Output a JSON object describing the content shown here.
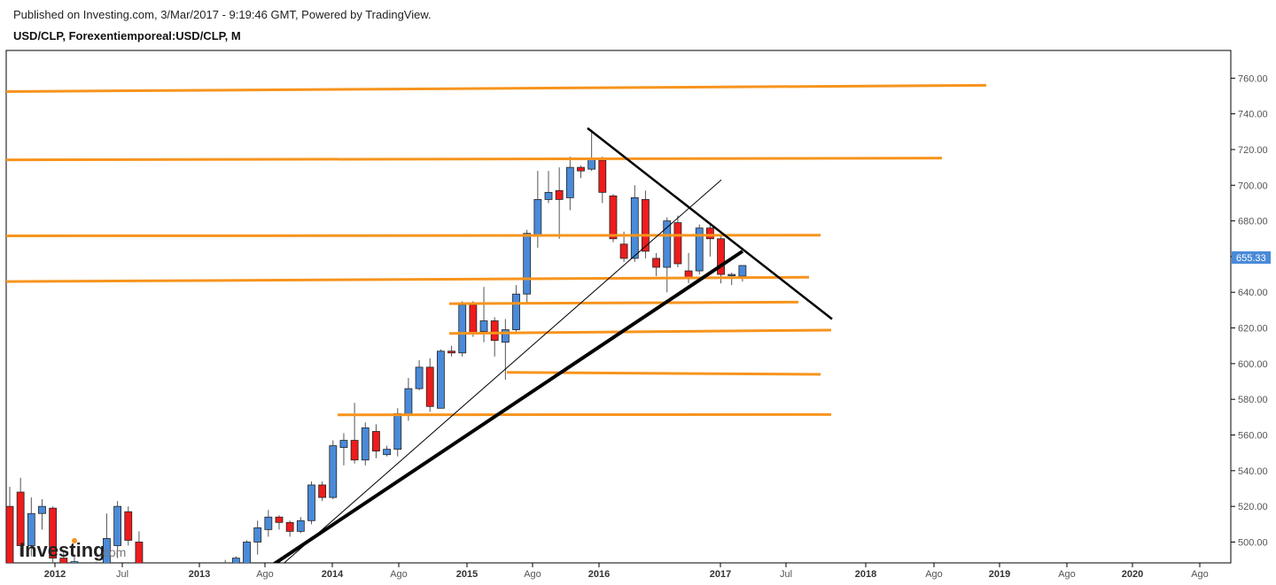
{
  "header": {
    "published": "Published on Investing.com, 3/Mar/2017 - 9:19:46 GMT, Powered by TradingView.",
    "symbol": "USD/CLP, Forexentiemporeal:USD/CLP, M"
  },
  "logo": {
    "text": "Investing",
    "suffix": ".com"
  },
  "chart_data": {
    "type": "candlestick",
    "y_axis": {
      "ticks": [
        "760.00",
        "740.00",
        "720.00",
        "700.00",
        "680.00",
        "660.00",
        "640.00",
        "620.00",
        "600.00",
        "580.00",
        "560.00",
        "540.00",
        "520.00",
        "500.00"
      ],
      "range": [
        483,
        768
      ],
      "current_price_label": "655.33"
    },
    "x_axis": {
      "labels": [
        {
          "text": "2012",
          "major": true
        },
        {
          "text": "Jul",
          "major": false
        },
        {
          "text": "2013",
          "major": true
        },
        {
          "text": "Ago",
          "major": false
        },
        {
          "text": "2014",
          "major": true
        },
        {
          "text": "Ago",
          "major": false
        },
        {
          "text": "2015",
          "major": true
        },
        {
          "text": "Ago",
          "major": false
        },
        {
          "text": "2016",
          "major": true
        },
        {
          "text": "2017",
          "major": true
        },
        {
          "text": "Jul",
          "major": false
        },
        {
          "text": "2018",
          "major": true
        },
        {
          "text": "Ago",
          "major": false
        },
        {
          "text": "2019",
          "major": true
        },
        {
          "text": "Ago",
          "major": false
        },
        {
          "text": "2020",
          "major": true
        },
        {
          "text": "Ago",
          "major": false
        }
      ]
    },
    "colors": {
      "up": "#4a8ad8",
      "down": "#ee1c1c",
      "support": "#f7941d",
      "trend": "#000000"
    },
    "candles": [
      [
        520,
        480,
        531,
        476
      ],
      [
        528,
        498,
        536,
        492
      ],
      [
        498,
        516,
        525,
        492
      ],
      [
        516,
        520,
        524,
        507
      ],
      [
        519,
        491,
        520,
        480
      ],
      [
        491,
        486,
        495,
        483
      ],
      [
        488,
        489,
        492,
        484
      ],
      [
        483,
        481,
        487,
        479
      ],
      [
        486,
        487,
        489,
        484
      ],
      [
        488,
        502,
        516,
        486
      ],
      [
        498,
        520,
        523,
        491
      ],
      [
        517,
        501,
        520,
        498
      ],
      [
        500,
        484,
        506,
        480
      ],
      [
        486,
        485,
        488,
        482
      ],
      [
        485,
        484,
        487,
        482
      ],
      [
        483,
        484,
        486,
        482
      ],
      [
        484,
        485,
        487,
        483
      ],
      [
        485,
        484,
        487,
        482
      ],
      [
        485,
        485,
        486,
        483
      ],
      [
        484,
        483,
        486,
        481
      ],
      [
        485,
        487,
        490,
        483
      ],
      [
        487,
        491,
        492,
        486
      ],
      [
        488,
        500,
        501,
        488
      ],
      [
        500,
        508,
        512,
        493
      ],
      [
        507,
        514,
        518,
        503
      ],
      [
        514,
        511,
        515,
        507
      ],
      [
        511,
        506,
        512,
        503
      ],
      [
        506,
        512,
        514,
        505
      ],
      [
        512,
        532,
        534,
        510
      ],
      [
        532,
        525,
        534,
        523
      ],
      [
        525,
        554,
        557,
        524
      ],
      [
        553,
        557,
        561,
        543
      ],
      [
        557,
        546,
        578,
        544
      ],
      [
        546,
        564,
        567,
        543
      ],
      [
        562,
        551,
        566,
        547
      ],
      [
        549,
        552,
        554,
        548
      ],
      [
        552,
        572,
        575,
        548
      ],
      [
        571,
        586,
        592,
        568
      ],
      [
        586,
        598,
        602,
        585
      ],
      [
        598,
        576,
        603,
        573
      ],
      [
        575,
        607,
        608,
        575
      ],
      [
        607,
        606,
        610,
        604
      ],
      [
        606,
        633,
        635,
        604
      ],
      [
        633,
        617,
        635,
        615
      ],
      [
        618,
        624,
        643,
        612
      ],
      [
        624,
        613,
        626,
        604
      ],
      [
        612,
        619,
        625,
        591
      ],
      [
        619,
        639,
        644,
        617
      ],
      [
        639,
        673,
        675,
        634
      ],
      [
        672,
        692,
        708,
        665
      ],
      [
        692,
        696,
        708,
        690
      ],
      [
        697,
        692,
        710,
        670
      ],
      [
        693,
        710,
        716,
        686
      ],
      [
        710,
        708,
        711,
        704
      ],
      [
        709,
        715,
        731,
        708
      ],
      [
        714,
        696,
        716,
        690
      ],
      [
        694,
        670,
        695,
        668
      ],
      [
        667,
        659,
        674,
        657
      ],
      [
        659,
        693,
        700,
        657
      ],
      [
        692,
        663,
        697,
        659
      ],
      [
        659,
        654,
        662,
        649
      ],
      [
        654,
        680,
        682,
        640
      ],
      [
        679,
        656,
        683,
        654
      ],
      [
        652,
        648,
        662,
        645
      ],
      [
        652,
        676,
        678,
        650
      ],
      [
        676,
        670,
        678,
        660
      ],
      [
        670,
        650,
        672,
        645
      ],
      [
        650,
        650,
        651,
        644
      ],
      [
        649,
        655,
        655,
        646
      ]
    ],
    "support_lines": [
      [
        0,
        752.5,
        1113,
        756
      ],
      [
        0,
        714.2,
        1063,
        715.2
      ],
      [
        0,
        671.6,
        926,
        672
      ],
      [
        0,
        646.0,
        913,
        648.4
      ],
      [
        500,
        633.6,
        901,
        634.5
      ],
      [
        500,
        616.9,
        938,
        618.8
      ],
      [
        565,
        595.1,
        926,
        594
      ],
      [
        374,
        571.3,
        938,
        571.5
      ]
    ],
    "trend_lines": [
      {
        "x1": 663,
        "y1": 732,
        "x2": 939,
        "y2": 625,
        "width": 2.5
      },
      {
        "x1": 295,
        "y1": 483,
        "x2": 838,
        "y2": 663,
        "width": 4
      },
      {
        "x1": 320,
        "y1": 488,
        "x2": 814,
        "y2": 703,
        "width": 1
      }
    ]
  }
}
